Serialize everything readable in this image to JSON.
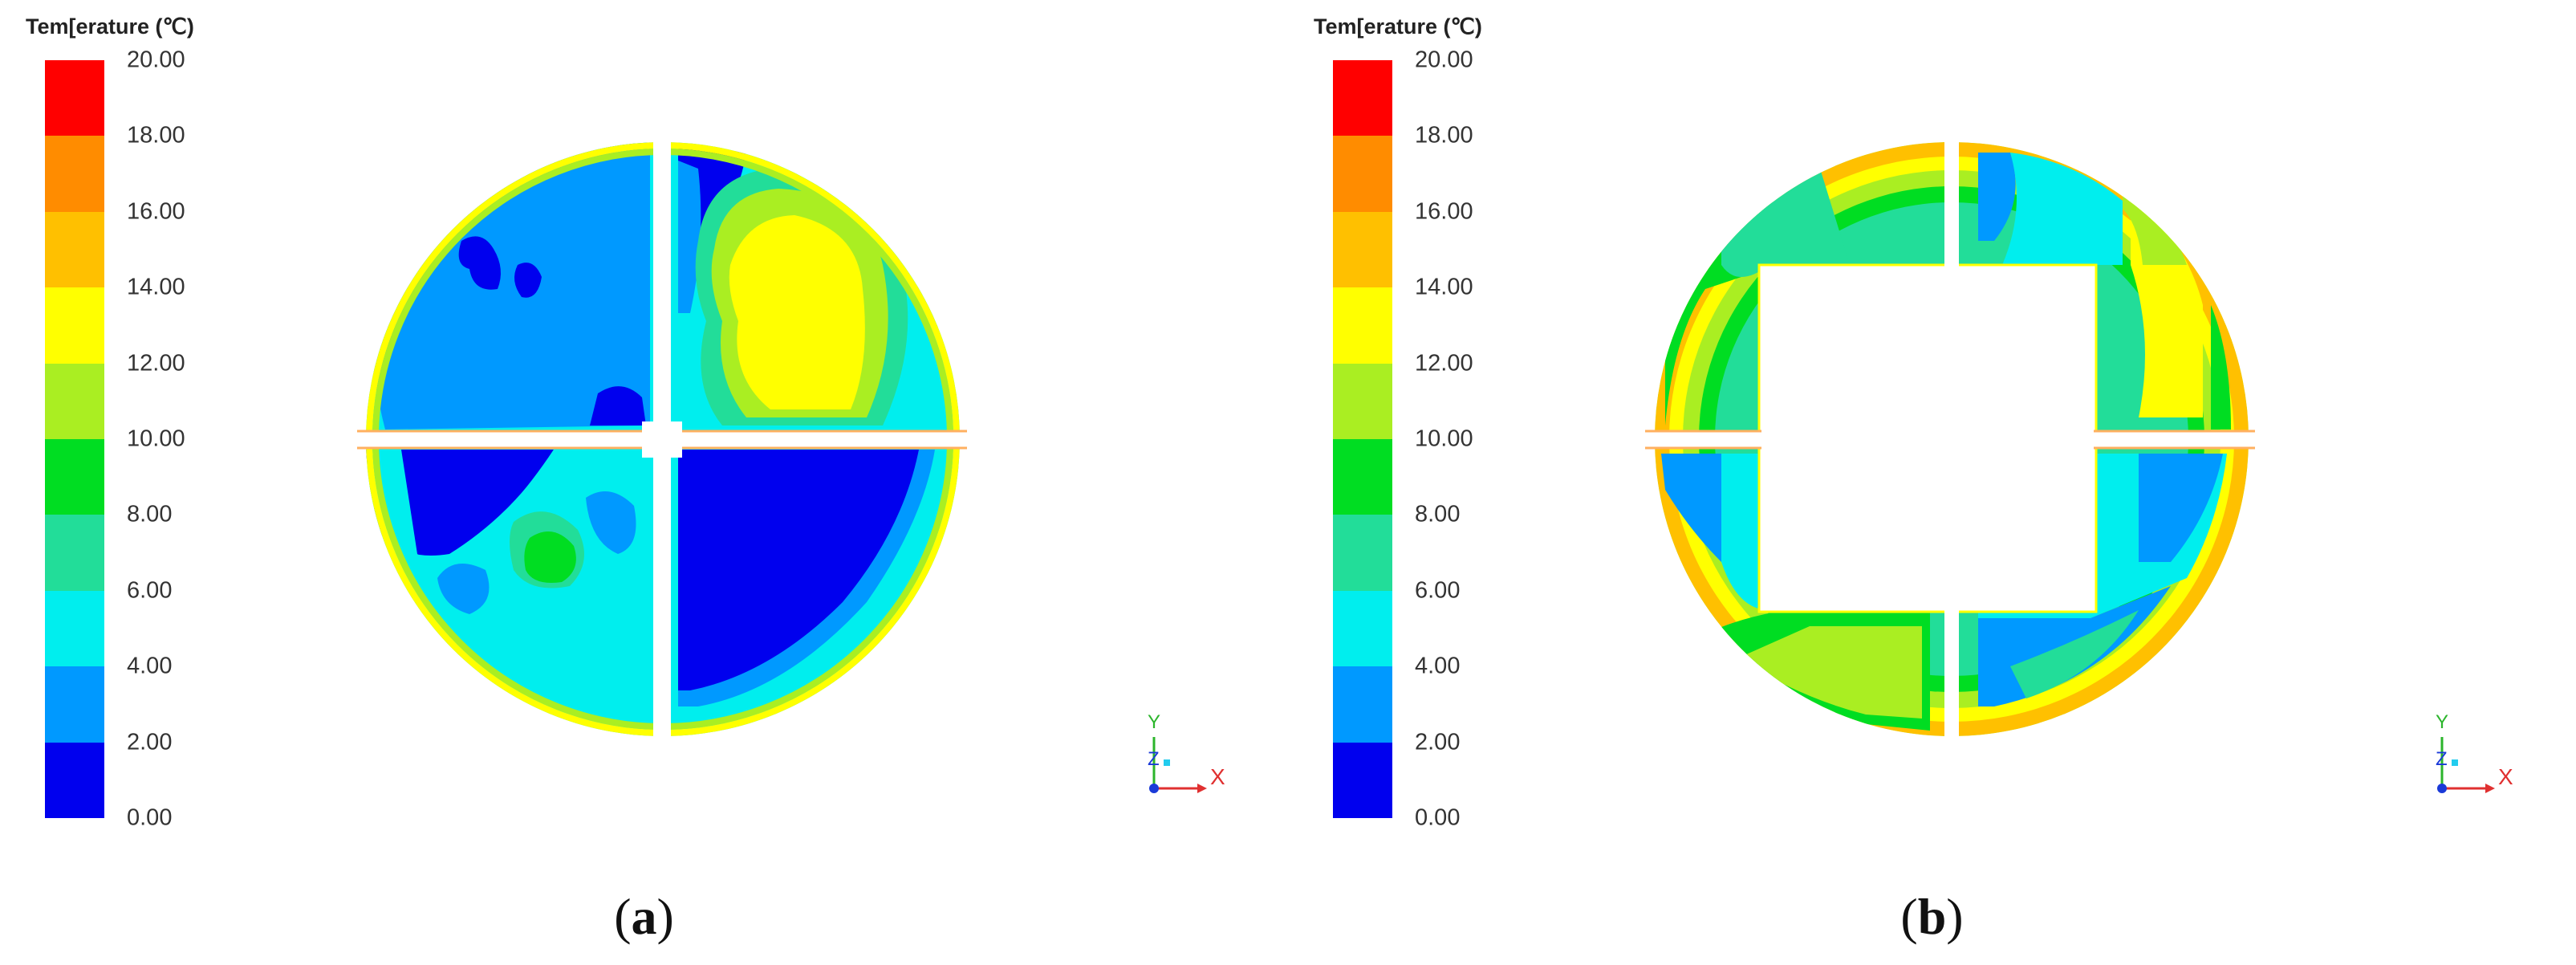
{
  "legend": {
    "title": "Tem[erature (℃)",
    "ticks": [
      "20.00",
      "18.00",
      "16.00",
      "14.00",
      "12.00",
      "10.00",
      "8.00",
      "6.00",
      "4.00",
      "2.00",
      "0.00"
    ],
    "colors": [
      "#ff0000",
      "#ff8c00",
      "#ffc000",
      "#ffff00",
      "#aaee22",
      "#00dd22",
      "#22dd99",
      "#00eeee",
      "#0099ff",
      "#0000ee"
    ]
  },
  "axis": {
    "y": "Y",
    "z": "Z",
    "x": "X"
  },
  "panels": [
    {
      "label": "a"
    },
    {
      "label": "b"
    }
  ]
}
